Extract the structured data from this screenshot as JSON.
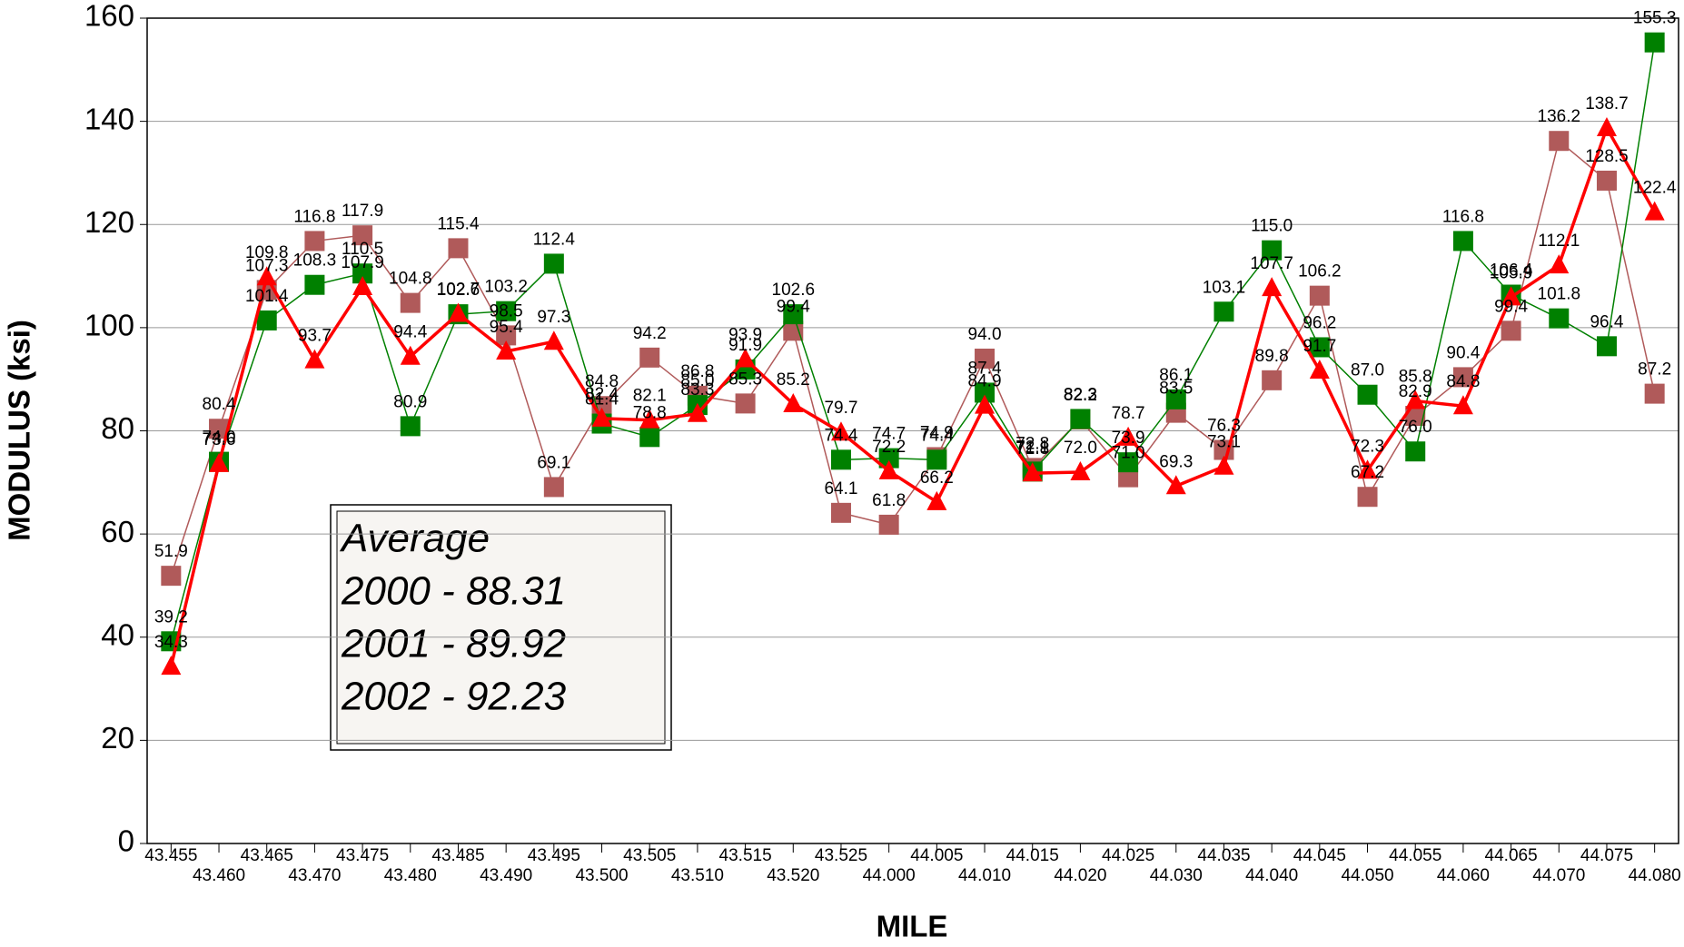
{
  "chart_data": {
    "type": "line",
    "categories": [
      "43.455",
      "43.460",
      "43.465",
      "43.470",
      "43.475",
      "43.480",
      "43.485",
      "43.490",
      "43.495",
      "43.500",
      "43.505",
      "43.510",
      "43.515",
      "43.520",
      "43.525",
      "44.000",
      "44.005",
      "44.010",
      "44.015",
      "44.020",
      "44.025",
      "44.030",
      "44.035",
      "44.040",
      "44.045",
      "44.050",
      "44.055",
      "44.060",
      "44.065",
      "44.070",
      "44.075",
      "44.080"
    ],
    "series": [
      {
        "color": "#b05a5a",
        "marker": "square",
        "values": [
          51.9,
          80.4,
          107.3,
          116.8,
          117.9,
          104.8,
          115.4,
          98.5,
          69.1,
          84.8,
          94.2,
          86.8,
          85.3,
          99.4,
          64.1,
          61.8,
          74.9,
          94.0,
          72.8,
          82.2,
          71.0,
          83.5,
          76.3,
          89.8,
          106.2,
          67.2,
          82.9,
          90.4,
          99.4,
          136.2,
          128.5,
          87.2
        ],
        "value_labels": [
          "51.9",
          "80.4",
          "107.3",
          "116.8",
          "117.9",
          "104.8",
          "115.4",
          "98.5",
          "69.1",
          "84.8",
          "94.2",
          "86.8",
          "85.3",
          "99.4",
          "64.1",
          "61.8",
          "74.9",
          "94.0",
          "72.8",
          "82.2",
          "71.0",
          "83.5",
          "76.3",
          "89.8",
          "106.2",
          "67.2",
          "82.9",
          "90.4",
          "99.4",
          "136.2",
          "128.5",
          "87.2"
        ]
      },
      {
        "color": "#008000",
        "marker": "square",
        "values": [
          39.2,
          74.0,
          101.4,
          108.3,
          110.5,
          80.9,
          102.6,
          103.2,
          112.4,
          81.4,
          78.8,
          85.0,
          91.9,
          102.6,
          74.4,
          74.7,
          74.4,
          87.4,
          72.1,
          82.3,
          73.9,
          86.1,
          103.1,
          115.0,
          96.2,
          87.0,
          76.0,
          116.8,
          106.4,
          101.8,
          96.4,
          155.3
        ],
        "value_labels": [
          "39.2",
          "74.0",
          "101.4",
          "108.3",
          "110.5",
          "80.9",
          "102.6",
          "103.2",
          "112.4",
          "81.4",
          "78.8",
          "85.0",
          "91.9",
          "102.6",
          "74.4",
          "74.7",
          "74.4",
          "87.4",
          "72.1",
          "82.3",
          "73.9",
          "86.1",
          "103.1",
          "115.0",
          "96.2",
          "87.0",
          "76.0",
          "116.8",
          "106.4",
          "101.8",
          "96.4",
          "155.3"
        ]
      },
      {
        "color": "#ff0000",
        "marker": "triangle",
        "values": [
          34.3,
          73.6,
          109.8,
          93.7,
          107.9,
          94.4,
          102.7,
          95.4,
          97.3,
          82.4,
          82.1,
          83.3,
          93.9,
          85.2,
          79.7,
          72.2,
          66.2,
          84.9,
          71.8,
          72.0,
          78.7,
          69.3,
          73.1,
          107.7,
          91.7,
          72.3,
          85.8,
          84.8,
          105.9,
          112.1,
          138.7,
          122.4
        ],
        "value_labels": [
          "34.3",
          "73.6",
          "109.8",
          "93.7",
          "107.9",
          "94.4",
          "102.7",
          "95.4",
          "97.3",
          "82.4",
          "82.1",
          "83.3",
          "93.9",
          "85.2",
          "79.7",
          "72.2",
          "66.2",
          "84.9",
          "71.8",
          "72.0",
          "78.7",
          "69.3",
          "73.1",
          "107.7",
          "91.7",
          "72.3",
          "85.8",
          "84.8",
          "105.9",
          "112.1",
          "138.7",
          "122.4"
        ]
      }
    ],
    "x_label": "MILE",
    "y_label": "MODULUS (ksi)",
    "ylim": [
      0,
      160
    ],
    "yticks": [
      0,
      20,
      40,
      60,
      80,
      100,
      120,
      140,
      160
    ],
    "grid": true,
    "annotation": [
      "Average",
      "2000 - 88.31",
      "2001 - 89.92",
      "2002 - 92.23"
    ]
  }
}
